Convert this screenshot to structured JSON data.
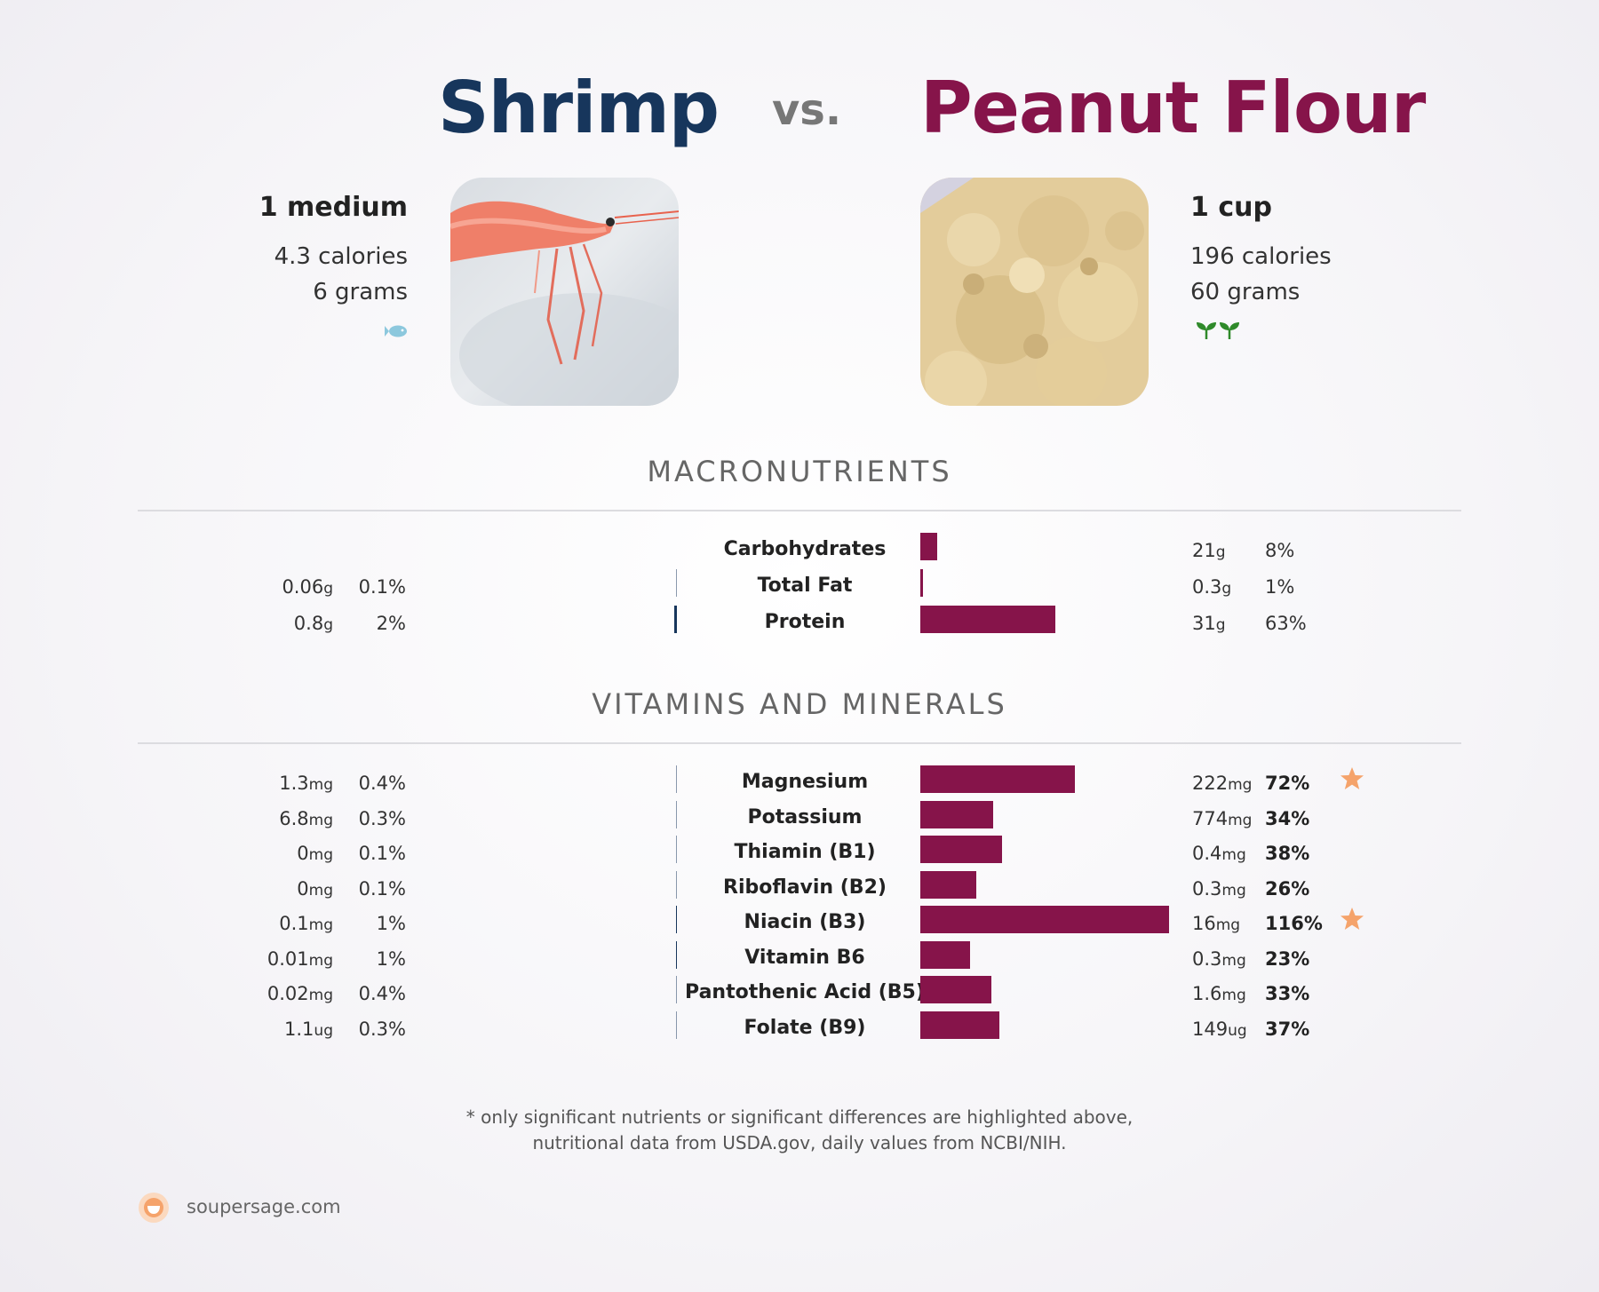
{
  "header": {
    "left_title": "Shrimp",
    "vs": "vs.",
    "right_title": "Peanut Flour"
  },
  "left_food": {
    "serving": "1 medium",
    "calories": "4.3 calories",
    "grams": "6 grams",
    "tag_icon": "fish-icon",
    "image": "shrimp-photo"
  },
  "right_food": {
    "serving": "1 cup",
    "calories": "196 calories",
    "grams": "60 grams",
    "tag_icon": "sprout-icon",
    "image": "peanut-flour-photo"
  },
  "colors": {
    "left": "#17365c",
    "right": "#86144a",
    "star": "#f5a36b"
  },
  "sections": {
    "macros": "MACRONUTRIENTS",
    "vitamins": "VITAMINS AND MINERALS"
  },
  "macros": [
    {
      "name": "Carbohydrates",
      "left_amount": "",
      "left_unit": "",
      "left_pct": "",
      "left_pct_value": 0,
      "right_amount": "21",
      "right_unit": "g",
      "right_pct": "8%",
      "right_pct_value": 8
    },
    {
      "name": "Total Fat",
      "left_amount": "0.06",
      "left_unit": "g",
      "left_pct": "0.1%",
      "left_pct_value": 0.1,
      "right_amount": "0.3",
      "right_unit": "g",
      "right_pct": "1%",
      "right_pct_value": 1
    },
    {
      "name": "Protein",
      "left_amount": "0.8",
      "left_unit": "g",
      "left_pct": "2%",
      "left_pct_value": 2,
      "right_amount": "31",
      "right_unit": "g",
      "right_pct": "63%",
      "right_pct_value": 63
    }
  ],
  "vitamins": [
    {
      "name": "Magnesium",
      "left_amount": "1.3",
      "left_unit": "mg",
      "left_pct": "0.4%",
      "left_pct_value": 0.4,
      "right_amount": "222",
      "right_unit": "mg",
      "right_pct": "72%",
      "right_pct_value": 72,
      "star": true
    },
    {
      "name": "Potassium",
      "left_amount": "6.8",
      "left_unit": "mg",
      "left_pct": "0.3%",
      "left_pct_value": 0.3,
      "right_amount": "774",
      "right_unit": "mg",
      "right_pct": "34%",
      "right_pct_value": 34,
      "star": false
    },
    {
      "name": "Thiamin (B1)",
      "left_amount": "0",
      "left_unit": "mg",
      "left_pct": "0.1%",
      "left_pct_value": 0.1,
      "right_amount": "0.4",
      "right_unit": "mg",
      "right_pct": "38%",
      "right_pct_value": 38,
      "star": false
    },
    {
      "name": "Riboflavin (B2)",
      "left_amount": "0",
      "left_unit": "mg",
      "left_pct": "0.1%",
      "left_pct_value": 0.1,
      "right_amount": "0.3",
      "right_unit": "mg",
      "right_pct": "26%",
      "right_pct_value": 26,
      "star": false
    },
    {
      "name": "Niacin (B3)",
      "left_amount": "0.1",
      "left_unit": "mg",
      "left_pct": "1%",
      "left_pct_value": 1,
      "right_amount": "16",
      "right_unit": "mg",
      "right_pct": "116%",
      "right_pct_value": 116,
      "star": true
    },
    {
      "name": "Vitamin B6",
      "left_amount": "0.01",
      "left_unit": "mg",
      "left_pct": "1%",
      "left_pct_value": 1,
      "right_amount": "0.3",
      "right_unit": "mg",
      "right_pct": "23%",
      "right_pct_value": 23,
      "star": false
    },
    {
      "name": "Pantothenic Acid (B5)",
      "left_amount": "0.02",
      "left_unit": "mg",
      "left_pct": "0.4%",
      "left_pct_value": 0.4,
      "right_amount": "1.6",
      "right_unit": "mg",
      "right_pct": "33%",
      "right_pct_value": 33,
      "star": false
    },
    {
      "name": "Folate (B9)",
      "left_amount": "1.1",
      "left_unit": "ug",
      "left_pct": "0.3%",
      "left_pct_value": 0.3,
      "right_amount": "149",
      "right_unit": "ug",
      "right_pct": "37%",
      "right_pct_value": 37,
      "star": false
    }
  ],
  "footnote": {
    "line1": "* only significant nutrients or significant differences are highlighted above,",
    "line2": "nutritional data from USDA.gov, daily values from NCBI/NIH."
  },
  "brand": {
    "name": "soupersage.com",
    "logo_icon": "soupersage-logo-icon"
  }
}
